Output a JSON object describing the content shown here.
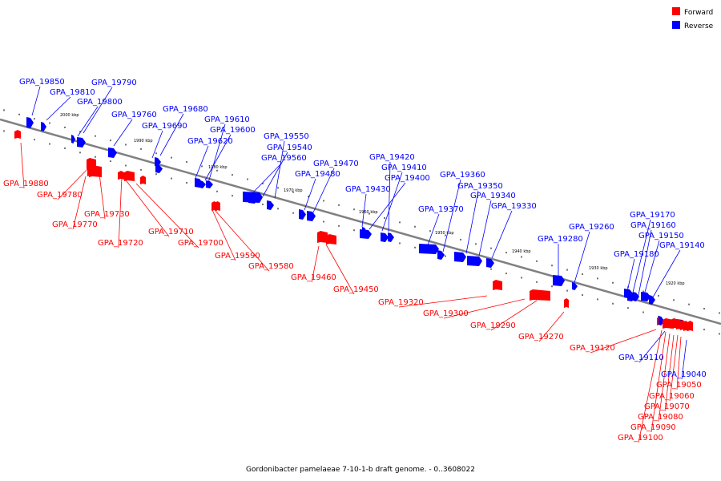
{
  "legend": [
    {
      "label": "Forward",
      "color": "#ff0000"
    },
    {
      "label": "Reverse",
      "color": "#0000ff"
    }
  ],
  "colors": {
    "forward": "#ff0000",
    "reverse": "#0000ff",
    "axis": "#808080"
  },
  "caption": "Gordonibacter pamelaeae 7-10-1-b draft genome. - 0..3608022",
  "scale_labels": [
    "2000 kbp",
    "1990 kbp",
    "1980 kbp",
    "1970 kbp",
    "1960 kbp",
    "1950 kbp",
    "1940 kbp",
    "1930 kbp",
    "1920 kbp"
  ],
  "genes": [
    {
      "name": "GPA_19850",
      "strand": "reverse"
    },
    {
      "name": "GPA_19810",
      "strand": "reverse"
    },
    {
      "name": "GPA_19790",
      "strand": "reverse"
    },
    {
      "name": "GPA_19800",
      "strand": "reverse"
    },
    {
      "name": "GPA_19760",
      "strand": "reverse"
    },
    {
      "name": "GPA_19680",
      "strand": "reverse"
    },
    {
      "name": "GPA_19690",
      "strand": "reverse"
    },
    {
      "name": "GPA_19610",
      "strand": "reverse"
    },
    {
      "name": "GPA_19600",
      "strand": "reverse"
    },
    {
      "name": "GPA_19620",
      "strand": "reverse"
    },
    {
      "name": "GPA_19550",
      "strand": "reverse"
    },
    {
      "name": "GPA_19540",
      "strand": "reverse"
    },
    {
      "name": "GPA_19560",
      "strand": "reverse"
    },
    {
      "name": "GPA_19470",
      "strand": "reverse"
    },
    {
      "name": "GPA_19480",
      "strand": "reverse"
    },
    {
      "name": "GPA_19420",
      "strand": "reverse"
    },
    {
      "name": "GPA_19410",
      "strand": "reverse"
    },
    {
      "name": "GPA_19400",
      "strand": "reverse"
    },
    {
      "name": "GPA_19430",
      "strand": "reverse"
    },
    {
      "name": "GPA_19360",
      "strand": "reverse"
    },
    {
      "name": "GPA_19350",
      "strand": "reverse"
    },
    {
      "name": "GPA_19340",
      "strand": "reverse"
    },
    {
      "name": "GPA_19370",
      "strand": "reverse"
    },
    {
      "name": "GPA_19330",
      "strand": "reverse"
    },
    {
      "name": "GPA_19260",
      "strand": "reverse"
    },
    {
      "name": "GPA_19280",
      "strand": "reverse"
    },
    {
      "name": "GPA_19170",
      "strand": "reverse"
    },
    {
      "name": "GPA_19160",
      "strand": "reverse"
    },
    {
      "name": "GPA_19150",
      "strand": "reverse"
    },
    {
      "name": "GPA_19180",
      "strand": "reverse"
    },
    {
      "name": "GPA_19140",
      "strand": "reverse"
    },
    {
      "name": "GPA_19880",
      "strand": "forward"
    },
    {
      "name": "GPA_19780",
      "strand": "forward"
    },
    {
      "name": "GPA_19730",
      "strand": "forward"
    },
    {
      "name": "GPA_19770",
      "strand": "forward"
    },
    {
      "name": "GPA_19710",
      "strand": "forward"
    },
    {
      "name": "GPA_19720",
      "strand": "forward"
    },
    {
      "name": "GPA_19700",
      "strand": "forward"
    },
    {
      "name": "GPA_19590",
      "strand": "forward"
    },
    {
      "name": "GPA_19580",
      "strand": "forward"
    },
    {
      "name": "GPA_19460",
      "strand": "forward"
    },
    {
      "name": "GPA_19450",
      "strand": "forward"
    },
    {
      "name": "GPA_19320",
      "strand": "forward"
    },
    {
      "name": "GPA_19300",
      "strand": "forward"
    },
    {
      "name": "GPA_19290",
      "strand": "forward"
    },
    {
      "name": "GPA_19270",
      "strand": "forward"
    },
    {
      "name": "GPA_19120",
      "strand": "forward"
    },
    {
      "name": "GPA_19110",
      "strand": "reverse"
    },
    {
      "name": "GPA_19040",
      "strand": "reverse"
    },
    {
      "name": "GPA_19050",
      "strand": "forward"
    },
    {
      "name": "GPA_19060",
      "strand": "forward"
    },
    {
      "name": "GPA_19070",
      "strand": "forward"
    },
    {
      "name": "GPA_19080",
      "strand": "forward"
    },
    {
      "name": "GPA_19090",
      "strand": "forward"
    },
    {
      "name": "GPA_19100",
      "strand": "forward"
    }
  ]
}
